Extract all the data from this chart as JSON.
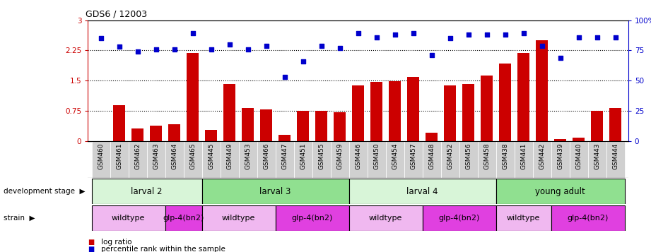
{
  "title": "GDS6 / 12003",
  "samples": [
    "GSM460",
    "GSM461",
    "GSM462",
    "GSM463",
    "GSM464",
    "GSM465",
    "GSM445",
    "GSM449",
    "GSM453",
    "GSM466",
    "GSM447",
    "GSM451",
    "GSM455",
    "GSM459",
    "GSM446",
    "GSM450",
    "GSM454",
    "GSM457",
    "GSM448",
    "GSM452",
    "GSM456",
    "GSM458",
    "GSM438",
    "GSM441",
    "GSM442",
    "GSM439",
    "GSM440",
    "GSM443",
    "GSM444"
  ],
  "log_ratio": [
    0.0,
    0.9,
    0.32,
    0.38,
    0.42,
    2.18,
    0.28,
    1.42,
    0.82,
    0.78,
    0.15,
    0.75,
    0.75,
    0.72,
    1.38,
    1.47,
    1.48,
    1.6,
    0.2,
    1.38,
    1.42,
    1.62,
    1.92,
    2.18,
    2.5,
    0.05,
    0.08,
    0.75,
    0.82
  ],
  "percentile": [
    85,
    78,
    74,
    76,
    76,
    89,
    76,
    80,
    76,
    79,
    53,
    66,
    79,
    77,
    89,
    86,
    88,
    89,
    71,
    85,
    88,
    88,
    88,
    89,
    79,
    69,
    86,
    86,
    86
  ],
  "dev_stages": [
    {
      "label": "larval 2",
      "start": 0,
      "end": 6,
      "color": "#d8f5d8"
    },
    {
      "label": "larval 3",
      "start": 6,
      "end": 14,
      "color": "#90e090"
    },
    {
      "label": "larval 4",
      "start": 14,
      "end": 22,
      "color": "#d8f5d8"
    },
    {
      "label": "young adult",
      "start": 22,
      "end": 29,
      "color": "#90e090"
    }
  ],
  "strains": [
    {
      "label": "wildtype",
      "start": 0,
      "end": 4,
      "color": "#f0b8f0"
    },
    {
      "label": "glp-4(bn2)",
      "start": 4,
      "end": 6,
      "color": "#e040e0"
    },
    {
      "label": "wildtype",
      "start": 6,
      "end": 10,
      "color": "#f0b8f0"
    },
    {
      "label": "glp-4(bn2)",
      "start": 10,
      "end": 14,
      "color": "#e040e0"
    },
    {
      "label": "wildtype",
      "start": 14,
      "end": 18,
      "color": "#f0b8f0"
    },
    {
      "label": "glp-4(bn2)",
      "start": 18,
      "end": 22,
      "color": "#e040e0"
    },
    {
      "label": "wildtype",
      "start": 22,
      "end": 25,
      "color": "#f0b8f0"
    },
    {
      "label": "glp-4(bn2)",
      "start": 25,
      "end": 29,
      "color": "#e040e0"
    }
  ],
  "ylim_left": [
    0,
    3.0
  ],
  "ylim_right": [
    0,
    100
  ],
  "yticks_left": [
    0,
    0.75,
    1.5,
    2.25,
    3.0
  ],
  "yticks_right": [
    0,
    25,
    50,
    75,
    100
  ],
  "ytick_labels_left": [
    "0",
    "0.75",
    "1.5",
    "2.25",
    "3"
  ],
  "ytick_labels_right": [
    "0",
    "25",
    "50",
    "75",
    "100%"
  ],
  "bar_color": "#cc0000",
  "scatter_color": "#0000cc",
  "hlines": [
    0.75,
    1.5,
    2.25
  ],
  "bg_color": "#ffffff",
  "tick_label_color_left": "#cc0000",
  "tick_label_color_right": "#0000cc",
  "xtick_bg": "#d0d0d0"
}
